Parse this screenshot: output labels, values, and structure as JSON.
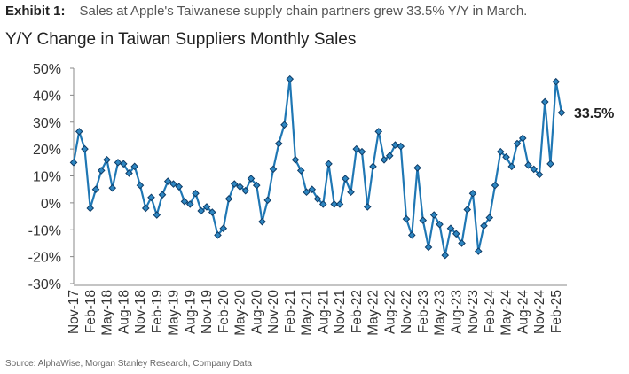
{
  "header": {
    "exhibit_label": "Exhibit 1:",
    "exhibit_text": "Sales at Apple's Taiwanese supply chain partners grew 33.5% Y/Y in March."
  },
  "source": "Source: AlphaWise, Morgan Stanley Research, Company Data",
  "colors": {
    "line": "#1f77b4",
    "marker_fill": "#2e86c1",
    "marker_stroke": "#0d3b66"
  },
  "chart_data": {
    "type": "line",
    "title": "Y/Y Change in Taiwan Suppliers Monthly Sales",
    "xlabel": "",
    "ylabel": "",
    "ylim": [
      -30,
      50
    ],
    "yticks": [
      "50%",
      "40%",
      "30%",
      "20%",
      "10%",
      "0%",
      "-10%",
      "-20%",
      "-30%"
    ],
    "grid": false,
    "x_tick_labels": [
      "Nov-17",
      "Feb-18",
      "May-18",
      "Aug-18",
      "Nov-18",
      "Feb-19",
      "May-19",
      "Aug-19",
      "Nov-19",
      "Feb-20",
      "May-20",
      "Aug-20",
      "Nov-20",
      "Feb-21",
      "May-21",
      "Aug-21",
      "Nov-21",
      "Feb-22",
      "May-22",
      "Aug-22",
      "Nov-22",
      "Feb-23",
      "May-23",
      "Aug-23",
      "Nov-23",
      "Feb-24",
      "May-24",
      "Aug-24",
      "Nov-24",
      "Feb-25"
    ],
    "end_label": "33.5%",
    "series": [
      {
        "x": [
          "Nov-17",
          "Dec-17",
          "Jan-18",
          "Feb-18",
          "Mar-18",
          "Apr-18",
          "May-18",
          "Jun-18",
          "Jul-18",
          "Aug-18",
          "Sep-18",
          "Oct-18",
          "Nov-18",
          "Dec-18",
          "Jan-19",
          "Feb-19",
          "Mar-19",
          "Apr-19",
          "May-19",
          "Jun-19",
          "Jul-19",
          "Aug-19",
          "Sep-19",
          "Oct-19",
          "Nov-19",
          "Dec-19",
          "Jan-20",
          "Feb-20",
          "Mar-20",
          "Apr-20",
          "May-20",
          "Jun-20",
          "Jul-20",
          "Aug-20",
          "Sep-20",
          "Oct-20",
          "Nov-20",
          "Dec-20",
          "Jan-21",
          "Feb-21",
          "Mar-21",
          "Apr-21",
          "May-21",
          "Jun-21",
          "Jul-21",
          "Aug-21",
          "Sep-21",
          "Oct-21",
          "Nov-21",
          "Dec-21",
          "Jan-22",
          "Feb-22",
          "Mar-22",
          "Apr-22",
          "May-22",
          "Jun-22",
          "Jul-22",
          "Aug-22",
          "Sep-22",
          "Oct-22",
          "Nov-22",
          "Dec-22",
          "Jan-23",
          "Feb-23",
          "Mar-23",
          "Apr-23",
          "May-23",
          "Jun-23",
          "Jul-23",
          "Aug-23",
          "Sep-23",
          "Oct-23",
          "Nov-23",
          "Dec-23",
          "Jan-24",
          "Feb-24",
          "Mar-24",
          "Apr-24",
          "May-24",
          "Jun-24",
          "Jul-24",
          "Aug-24",
          "Sep-24",
          "Oct-24",
          "Nov-24",
          "Dec-24",
          "Jan-25",
          "Feb-25",
          "Mar-25"
        ],
        "values": [
          15,
          26.5,
          20,
          -2,
          5,
          12,
          16,
          5.5,
          15,
          14.5,
          11,
          13.5,
          6.5,
          -2,
          2,
          -4.5,
          3,
          8,
          7,
          6,
          0.5,
          -0.5,
          3.5,
          -3,
          -1.5,
          -3.5,
          -12,
          -9.5,
          1.5,
          7,
          6,
          4.5,
          9,
          6.5,
          -7,
          1,
          12.5,
          22,
          29,
          46,
          16,
          12,
          4,
          5,
          1.5,
          -0.5,
          14.5,
          -0.5,
          -0.5,
          9,
          4,
          20,
          19,
          -1.5,
          13.5,
          26.5,
          16,
          17.5,
          21.5,
          21,
          -6,
          -12,
          13,
          -6.5,
          -16.5,
          -4.5,
          -8,
          -19.5,
          -9.5,
          -11.5,
          -15,
          -2.5,
          3.5,
          -18,
          -8.5,
          -5.5,
          6.5,
          19,
          17,
          13.5,
          22,
          24,
          14,
          12.5,
          10.5,
          37.5,
          14.5,
          45,
          33.5
        ]
      }
    ]
  }
}
